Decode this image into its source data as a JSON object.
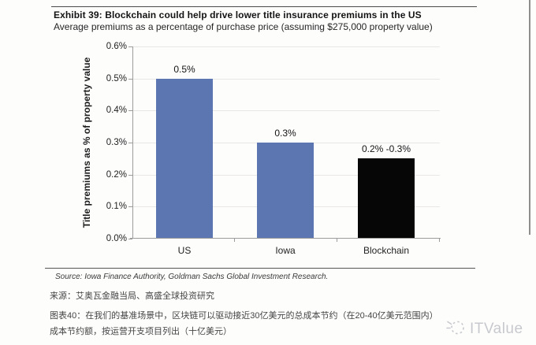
{
  "header": {
    "title": "Exhibit 39: Blockchain could help drive lower title insurance premiums in the US",
    "subtitle": "Average premiums as a percentage of purchase price (assuming $275,000 property value)"
  },
  "chart_data": {
    "type": "bar",
    "title": "Exhibit 39: Blockchain could help drive lower title insurance premiums in the US",
    "subtitle": "Average premiums as a percentage of purchase price (assuming $275,000 property value)",
    "categories": [
      "US",
      "Iowa",
      "Blockchain"
    ],
    "values": [
      0.5,
      0.3,
      0.25
    ],
    "value_labels": [
      "0.5%",
      "0.3%",
      "0.2% -0.3%"
    ],
    "value_note": "Blockchain bar plotted at 0.25%, representing a 0.2%-0.3% range",
    "bar_colors": [
      "#5b76b0",
      "#5b76b0",
      "#060606"
    ],
    "xlabel": "",
    "ylabel": "Title premiums as % of property value",
    "ylim": [
      0,
      0.6
    ],
    "ytick_step": 0.1,
    "ytick_labels": [
      "0.0%",
      "0.1%",
      "0.2%",
      "0.3%",
      "0.4%",
      "0.5%",
      "0.6%"
    ],
    "grid": true,
    "legend": "none"
  },
  "footer": {
    "source": "Source: Iowa Finance Authority, Goldman Sachs Global Investment Research.",
    "source_cn": "来源：艾奥瓦金融当局、高盛全球投资研究",
    "caption_line1": "图表40：在我们的基准场景中，区块链可以驱动接近30亿美元的总成本节约（在20-40亿美元范围内）",
    "caption_line2": "成本节约额，按运营开支项目列出（十亿美元）"
  },
  "watermark": {
    "text": "ITValue",
    "color": "#c7c9ce"
  },
  "colors": {
    "bar_blue": "#5b76b0",
    "bar_black": "#060606",
    "gridline": "#e9e7e5",
    "axis": "#9c9c9c"
  }
}
